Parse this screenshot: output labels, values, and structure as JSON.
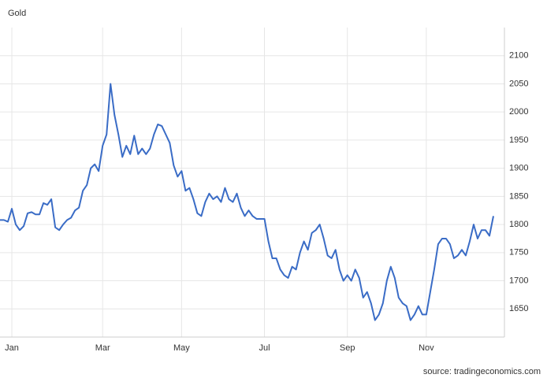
{
  "chart_data": {
    "type": "line",
    "title": "Gold",
    "source": "source: tradingeconomics.com",
    "categories": [
      null,
      null,
      null,
      "Jan",
      null,
      null,
      null,
      null,
      null,
      null,
      null,
      null,
      null,
      null,
      null,
      null,
      null,
      null,
      null,
      null,
      null,
      null,
      null,
      null,
      null,
      null,
      "Mar",
      null,
      null,
      null,
      null,
      null,
      null,
      null,
      null,
      null,
      null,
      null,
      null,
      null,
      null,
      null,
      null,
      null,
      null,
      null,
      "May",
      null,
      null,
      null,
      null,
      null,
      null,
      null,
      null,
      null,
      null,
      null,
      null,
      null,
      null,
      null,
      null,
      null,
      null,
      null,
      null,
      "Jul",
      null,
      null,
      null,
      null,
      null,
      null,
      null,
      null,
      null,
      null,
      null,
      null,
      null,
      null,
      null,
      null,
      null,
      null,
      null,
      null,
      "Sep",
      null,
      null,
      null,
      null,
      null,
      null,
      null,
      null,
      null,
      null,
      null,
      null,
      null,
      null,
      null,
      null,
      null,
      null,
      null,
      "Nov",
      null,
      null,
      null,
      null,
      null,
      null,
      null,
      null,
      null,
      null,
      null,
      null,
      null,
      null,
      null,
      null,
      null
    ],
    "values": [
      1808,
      1808,
      1805,
      1828,
      1800,
      1790,
      1797,
      1820,
      1822,
      1818,
      1818,
      1838,
      1835,
      1845,
      1795,
      1790,
      1800,
      1808,
      1812,
      1825,
      1830,
      1860,
      1870,
      1900,
      1907,
      1895,
      1940,
      1960,
      2050,
      1995,
      1960,
      1920,
      1940,
      1925,
      1958,
      1925,
      1935,
      1925,
      1935,
      1960,
      1978,
      1975,
      1960,
      1945,
      1905,
      1885,
      1895,
      1860,
      1865,
      1845,
      1820,
      1815,
      1840,
      1855,
      1845,
      1850,
      1840,
      1865,
      1845,
      1840,
      1855,
      1830,
      1815,
      1825,
      1815,
      1810,
      1810,
      1810,
      1770,
      1740,
      1740,
      1720,
      1710,
      1705,
      1725,
      1720,
      1750,
      1770,
      1755,
      1785,
      1790,
      1800,
      1775,
      1745,
      1740,
      1755,
      1720,
      1700,
      1710,
      1700,
      1720,
      1705,
      1670,
      1680,
      1660,
      1630,
      1640,
      1660,
      1700,
      1725,
      1705,
      1670,
      1660,
      1655,
      1630,
      1640,
      1655,
      1640,
      1640,
      1680,
      1720,
      1765,
      1775,
      1775,
      1765,
      1740,
      1745,
      1755,
      1745,
      1770,
      1800,
      1775,
      1790,
      1790,
      1780,
      1815
    ],
    "color": "#3a6cc6",
    "ylim": [
      1600,
      2150
    ],
    "yticks": [
      1650,
      1700,
      1750,
      1800,
      1850,
      1900,
      1950,
      2000,
      2050,
      2100
    ],
    "grid": true
  }
}
